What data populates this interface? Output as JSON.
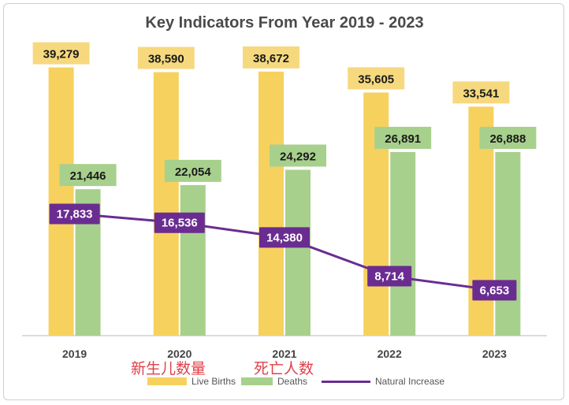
{
  "colors": {
    "live_births": "#f7d15e",
    "live_births_label": "#f6d97e",
    "deaths": "#a8d08d",
    "deaths_label": "#a8d08d",
    "natural_increase": "#6a2c91",
    "annotation": "#e0404a"
  },
  "chart_data": {
    "type": "bar",
    "title": "Key Indicators From Year 2019 - 2023",
    "categories": [
      "2019",
      "2020",
      "2021",
      "2022",
      "2023"
    ],
    "series": [
      {
        "name": "Live Births",
        "type": "bar",
        "values": [
          39279,
          38590,
          38672,
          35605,
          33541
        ],
        "labels": [
          "39,279",
          "38,590",
          "38,672",
          "35,605",
          "33,541"
        ]
      },
      {
        "name": "Deaths",
        "type": "bar",
        "values": [
          21446,
          22054,
          24292,
          26891,
          26888
        ],
        "labels": [
          "21,446",
          "22,054",
          "24,292",
          "26,891",
          "26,888"
        ]
      },
      {
        "name": "Natural Increase",
        "type": "line",
        "values": [
          17833,
          16536,
          14380,
          8714,
          6653
        ],
        "labels": [
          "17,833",
          "16,536",
          "14,380",
          "8,714",
          "6,653"
        ]
      }
    ],
    "ylim": [
      0,
      42000
    ],
    "grid": false,
    "legend": "bottom"
  },
  "annotations": {
    "live_births_cn": "新生儿数量",
    "deaths_cn": "死亡人数"
  }
}
